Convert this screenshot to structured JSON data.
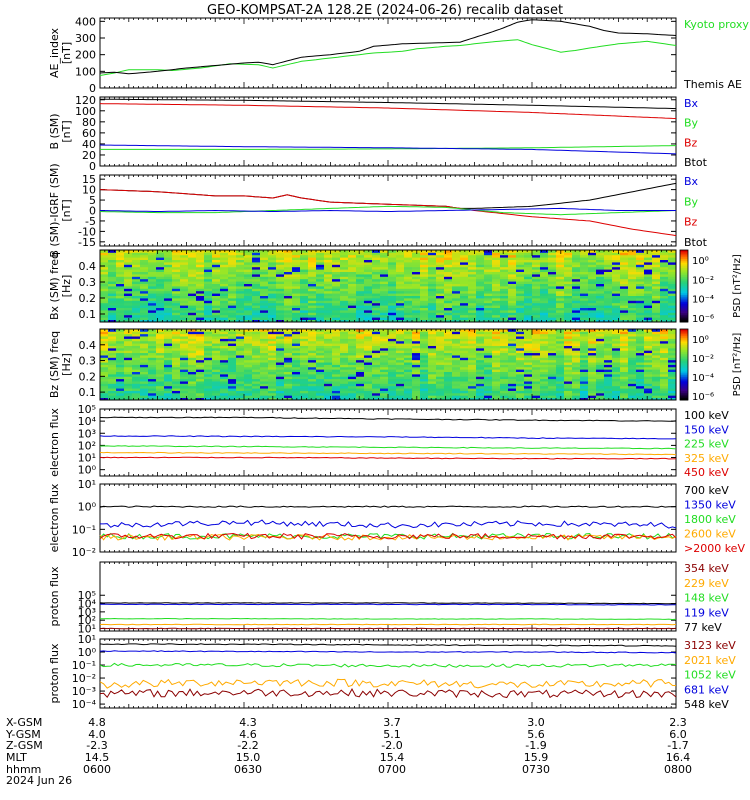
{
  "title": "GEO-KOMPSAT-2A 128.2E (2024-06-26) recalib dataset",
  "colors": {
    "black": "#000000",
    "red": "#dd0000",
    "green": "#22dd22",
    "blue": "#0000dd",
    "orange": "#ffaa00",
    "darkred": "#8b0000"
  },
  "chart_data": [
    {
      "type": "line",
      "ylabel": "AE_index [nT]",
      "ylim": [
        0,
        420
      ],
      "yticks": [
        "0",
        "100",
        "200",
        "300",
        "400"
      ],
      "legend": [
        "Kyoto proxy AE",
        "Themis AE"
      ],
      "series": [
        {
          "name": "Kyoto proxy AE",
          "color": "green",
          "x": [
            6.0,
            6.05,
            6.1,
            6.2,
            6.25,
            6.35,
            6.45,
            6.55,
            6.6,
            6.7,
            6.8,
            6.85,
            6.95,
            7.05,
            7.1,
            7.2,
            7.25,
            7.35,
            7.45,
            7.5,
            7.6,
            7.65,
            7.7,
            7.8,
            7.9,
            8.0
          ],
          "y": [
            75,
            90,
            110,
            110,
            105,
            120,
            145,
            140,
            120,
            160,
            180,
            190,
            210,
            220,
            235,
            250,
            255,
            275,
            290,
            260,
            215,
            225,
            240,
            265,
            280,
            255
          ]
        },
        {
          "name": "Themis AE",
          "color": "black",
          "x": [
            6.0,
            6.05,
            6.1,
            6.2,
            6.3,
            6.4,
            6.5,
            6.55,
            6.6,
            6.7,
            6.8,
            6.9,
            6.95,
            7.05,
            7.15,
            7.25,
            7.35,
            7.4,
            7.45,
            7.5,
            7.55,
            7.6,
            7.65,
            7.7,
            7.75,
            7.8,
            7.9,
            8.0
          ],
          "y": [
            90,
            95,
            85,
            100,
            120,
            135,
            150,
            155,
            140,
            185,
            200,
            220,
            250,
            265,
            270,
            275,
            330,
            360,
            395,
            410,
            405,
            400,
            385,
            370,
            345,
            330,
            325,
            315
          ]
        }
      ]
    },
    {
      "type": "line",
      "ylabel": "B (SM) [nT]",
      "ylim": [
        0,
        125
      ],
      "yticks": [
        "0",
        "20",
        "40",
        "60",
        "80",
        "100",
        "120"
      ],
      "legend": [
        "Bx",
        "By",
        "Bz",
        "Btot"
      ],
      "series": [
        {
          "name": "Btot",
          "color": "black",
          "x": [
            6.0,
            6.5,
            7.0,
            7.5,
            8.0
          ],
          "y": [
            121,
            119,
            115,
            110,
            104
          ]
        },
        {
          "name": "Bz",
          "color": "red",
          "x": [
            6.0,
            6.5,
            7.0,
            7.5,
            8.0
          ],
          "y": [
            113,
            110,
            105,
            97,
            86
          ]
        },
        {
          "name": "By",
          "color": "green",
          "x": [
            6.0,
            6.5,
            7.0,
            7.5,
            8.0
          ],
          "y": [
            30,
            30,
            31,
            33,
            37
          ]
        },
        {
          "name": "Bx",
          "color": "blue",
          "x": [
            6.0,
            6.5,
            7.0,
            7.5,
            8.0
          ],
          "y": [
            38,
            35,
            33,
            30,
            22
          ]
        }
      ]
    },
    {
      "type": "line",
      "ylabel": "B (SM)-IGRF (SM) [nT]",
      "ylim": [
        -17,
        17
      ],
      "yticks": [
        "-15",
        "-10",
        "-5",
        "0",
        "5",
        "10",
        "15"
      ],
      "legend": [
        "Bx",
        "By",
        "Bz",
        "Btot"
      ],
      "series": [
        {
          "name": "Btot",
          "color": "black",
          "x": [
            6.0,
            6.2,
            6.4,
            6.5,
            6.6,
            6.65,
            6.7,
            6.8,
            7.0,
            7.2,
            7.25,
            7.3,
            7.5,
            7.7,
            8.0
          ],
          "y": [
            10,
            9,
            7,
            7,
            6,
            7.5,
            6,
            4,
            3,
            2,
            1,
            1,
            2,
            5,
            13
          ]
        },
        {
          "name": "Bz",
          "color": "red",
          "x": [
            6.0,
            6.2,
            6.4,
            6.5,
            6.6,
            6.65,
            6.7,
            6.8,
            7.0,
            7.2,
            7.3,
            7.5,
            7.7,
            7.85,
            8.0
          ],
          "y": [
            10,
            9,
            7,
            7,
            6,
            7.5,
            6,
            4,
            3,
            2,
            0,
            -3,
            -5,
            -9,
            -12
          ]
        },
        {
          "name": "By",
          "color": "green",
          "x": [
            6.0,
            6.2,
            6.4,
            6.6,
            6.8,
            7.0,
            7.2,
            7.4,
            7.6,
            7.8,
            8.0
          ],
          "y": [
            -0.5,
            -1,
            -1,
            0,
            1,
            2,
            1.5,
            -1,
            -2,
            -1,
            0
          ]
        },
        {
          "name": "Bx",
          "color": "blue",
          "x": [
            6.0,
            6.2,
            6.4,
            6.6,
            6.8,
            7.0,
            7.2,
            7.4,
            7.6,
            7.8,
            8.0
          ],
          "y": [
            0,
            -0.5,
            0,
            -0.5,
            0,
            -0.5,
            0,
            0.5,
            1,
            0,
            0
          ]
        }
      ]
    },
    {
      "type": "heatmap",
      "ylabel": "Bx (SM) freq [Hz]",
      "ylim": [
        0.05,
        0.5
      ],
      "yticks": [
        "0.1",
        "0.2",
        "0.3",
        "0.4"
      ],
      "colorbar": {
        "label": "PSD [nT²/Hz]",
        "ticks": [
          "10⁰",
          "10⁻²",
          "10⁻⁴",
          "10⁻⁶"
        ]
      }
    },
    {
      "type": "heatmap",
      "ylabel": "Bz (SM) freq [Hz]",
      "ylim": [
        0.05,
        0.5
      ],
      "yticks": [
        "0.1",
        "0.2",
        "0.3",
        "0.4"
      ],
      "colorbar": {
        "label": "PSD [nT²/Hz]",
        "ticks": [
          "10⁰",
          "10⁻²",
          "10⁻⁴",
          "10⁻⁶"
        ]
      }
    },
    {
      "type": "line",
      "ylabel": "electron flux",
      "log": true,
      "ylim": [
        0.3,
        100000
      ],
      "yticks": [
        "10⁰",
        "10¹",
        "10²",
        "10³",
        "10⁴",
        "10⁵"
      ],
      "legend": [
        "100 keV",
        "150 keV",
        "225 keV",
        "325 keV",
        "450 keV"
      ],
      "series": [
        {
          "name": "100 keV",
          "color": "black",
          "x": [
            6.0,
            6.5,
            7.0,
            7.5,
            8.0
          ],
          "y": [
            20000,
            20000,
            15000,
            12000,
            10000
          ]
        },
        {
          "name": "150 keV",
          "color": "blue",
          "x": [
            6.0,
            6.5,
            7.0,
            7.5,
            8.0
          ],
          "y": [
            600,
            550,
            500,
            400,
            350
          ]
        },
        {
          "name": "225 keV",
          "color": "green",
          "x": [
            6.0,
            6.5,
            7.0,
            7.5,
            8.0
          ],
          "y": [
            90,
            80,
            70,
            60,
            55
          ]
        },
        {
          "name": "325 keV",
          "color": "orange",
          "x": [
            6.0,
            6.5,
            7.0,
            7.5,
            8.0
          ],
          "y": [
            25,
            24,
            22,
            20,
            18
          ]
        },
        {
          "name": "450 keV",
          "color": "red",
          "x": [
            6.0,
            6.5,
            7.0,
            7.5,
            8.0
          ],
          "y": [
            10,
            10,
            9,
            8,
            8
          ]
        }
      ]
    },
    {
      "type": "line",
      "ylabel": "electron flux",
      "log": true,
      "ylim": [
        0.01,
        10
      ],
      "yticks": [
        "10⁻²",
        "10⁻¹",
        "10⁰",
        "10¹"
      ],
      "legend": [
        "700 keV",
        "1350 keV",
        "1800 keV",
        "2600 keV",
        ">2000 keV"
      ],
      "series": [
        {
          "name": "700 keV",
          "color": "black",
          "x": [
            6.0,
            6.5,
            7.0,
            7.5,
            8.0
          ],
          "y": [
            1.0,
            1.0,
            1.0,
            1.0,
            1.0
          ]
        },
        {
          "name": "1350 keV",
          "color": "blue",
          "x": [
            6.0,
            6.5,
            7.0,
            7.5,
            8.0
          ],
          "y": [
            0.15,
            0.2,
            0.15,
            0.18,
            0.15
          ]
        },
        {
          "name": "1800 keV",
          "color": "green",
          "x": [
            6.0,
            6.5,
            7.0,
            7.5,
            8.0
          ],
          "y": [
            0.05,
            0.05,
            0.05,
            0.05,
            0.05
          ]
        },
        {
          "name": "2600 keV",
          "color": "orange",
          "x": [
            6.0,
            6.5,
            7.0,
            7.5,
            8.0
          ],
          "y": [
            0.045,
            0.045,
            0.045,
            0.045,
            0.045
          ]
        },
        {
          "name": ">2000 keV",
          "color": "red",
          "x": [
            6.0,
            6.5,
            7.0,
            7.5,
            8.0
          ],
          "y": [
            0.05,
            0.05,
            0.05,
            0.05,
            0.05
          ]
        }
      ]
    },
    {
      "type": "line",
      "ylabel": "proton flux",
      "log": true,
      "ylim": [
        5,
        1000000000
      ],
      "yticks": [
        "10¹",
        "10²",
        "10³",
        "10⁴",
        "10⁵"
      ],
      "legend": [
        "354 keV",
        "229 keV",
        "148 keV",
        "119 keV",
        "77 keV"
      ],
      "series": [
        {
          "name": "354 keV",
          "color": "darkred",
          "x": [
            6.0,
            6.5,
            7.0,
            7.5,
            8.0
          ],
          "y": [
            10,
            10,
            10,
            10,
            10
          ]
        },
        {
          "name": "229 keV",
          "color": "orange",
          "x": [
            6.0,
            6.5,
            7.0,
            7.5,
            8.0
          ],
          "y": [
            30,
            30,
            30,
            30,
            30
          ]
        },
        {
          "name": "148 keV",
          "color": "green",
          "x": [
            6.0,
            6.5,
            7.0,
            7.5,
            8.0
          ],
          "y": [
            150,
            150,
            140,
            140,
            130
          ]
        },
        {
          "name": "119 keV",
          "color": "blue",
          "x": [
            6.0,
            6.5,
            7.0,
            7.5,
            8.0
          ],
          "y": [
            8000,
            8000,
            8000,
            7500,
            7000
          ]
        },
        {
          "name": "77 keV",
          "color": "black",
          "x": [
            6.0,
            6.5,
            7.0,
            7.5,
            8.0
          ],
          "y": [
            12000,
            12000,
            12000,
            11000,
            10000
          ]
        }
      ]
    },
    {
      "type": "line",
      "ylabel": "proton flux",
      "log": true,
      "ylim": [
        5e-05,
        10
      ],
      "yticks": [
        "10⁻⁴",
        "10⁻³",
        "10⁻²",
        "10⁻¹",
        "10⁰",
        "10¹"
      ],
      "legend": [
        "3123 keV",
        "2021 keV",
        "1052 keV",
        "681 keV",
        "548 keV"
      ],
      "series": [
        {
          "name": "3123 keV",
          "color": "darkred",
          "x": [
            6.0,
            6.5,
            7.0,
            7.5,
            8.0
          ],
          "y": [
            0.0006,
            0.0008,
            0.0007,
            0.0006,
            0.0006
          ]
        },
        {
          "name": "2021 keV",
          "color": "orange",
          "x": [
            6.0,
            6.5,
            7.0,
            7.5,
            8.0
          ],
          "y": [
            0.003,
            0.005,
            0.004,
            0.003,
            0.004
          ]
        },
        {
          "name": "1052 keV",
          "color": "green",
          "x": [
            6.0,
            6.5,
            7.0,
            7.5,
            8.0
          ],
          "y": [
            0.1,
            0.1,
            0.09,
            0.09,
            0.1
          ]
        },
        {
          "name": "681 keV",
          "color": "blue",
          "x": [
            6.0,
            6.5,
            7.0,
            7.5,
            8.0
          ],
          "y": [
            1.2,
            1.1,
            1.0,
            1.0,
            0.9
          ]
        },
        {
          "name": "548 keV",
          "color": "black",
          "x": [
            6.0,
            6.5,
            7.0,
            7.5,
            8.0
          ],
          "y": [
            4,
            4,
            3.5,
            3.2,
            3
          ]
        }
      ]
    }
  ],
  "footer": {
    "labels": [
      "X-GSM",
      "Y-GSM",
      "Z-GSM",
      "MLT",
      "hhmm",
      "2024 Jun 26"
    ],
    "columns": [
      [
        "4.8",
        "4.0",
        "-2.3",
        "14.5",
        "0600"
      ],
      [
        "4.3",
        "4.6",
        "-2.2",
        "15.0",
        "0630"
      ],
      [
        "3.7",
        "5.1",
        "-2.0",
        "15.4",
        "0700"
      ],
      [
        "3.0",
        "5.6",
        "-1.9",
        "15.9",
        "0730"
      ],
      [
        "2.3",
        "6.0",
        "-1.7",
        "16.4",
        "0800"
      ]
    ]
  }
}
